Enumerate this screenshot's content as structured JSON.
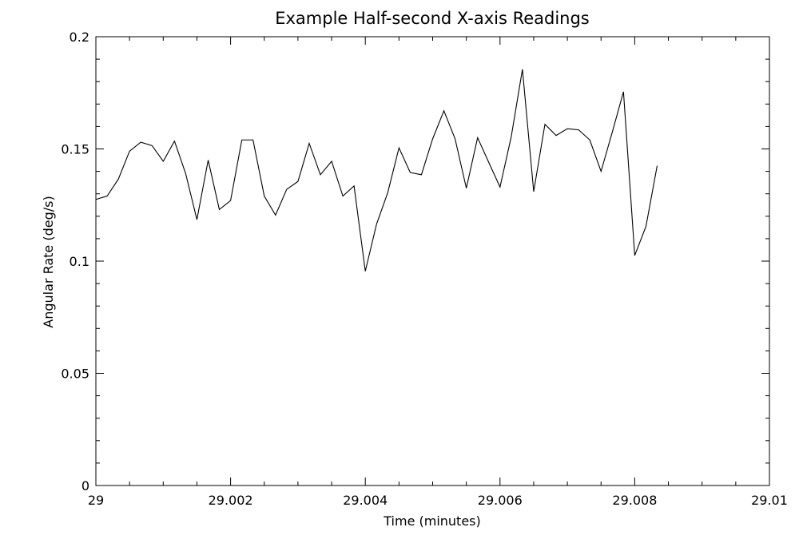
{
  "chart_data": {
    "type": "line",
    "title": "Example Half-second X-axis Readings",
    "xlabel": "Time (minutes)",
    "ylabel": "Angular Rate (deg/s)",
    "xlim": [
      29.0,
      29.01
    ],
    "ylim": [
      0,
      0.2
    ],
    "x_ticks": [
      29.0,
      29.002,
      29.004,
      29.006,
      29.008,
      29.01
    ],
    "x_tick_labels": [
      "29",
      "29.002",
      "29.004",
      "29.006",
      "29.008",
      "29.01"
    ],
    "x_minor_step": 0.0005,
    "y_ticks": [
      0,
      0.05,
      0.1,
      0.15,
      0.2
    ],
    "y_tick_labels": [
      "0",
      "0.05",
      "0.1",
      "0.15",
      "0.2"
    ],
    "y_minor_step": 0.01,
    "grid": false,
    "series": [
      {
        "x": [
          29.0,
          29.000167,
          29.000333,
          29.0005,
          29.000667,
          29.000833,
          29.001,
          29.001167,
          29.001333,
          29.0015,
          29.001667,
          29.001833,
          29.002,
          29.002167,
          29.002333,
          29.0025,
          29.002667,
          29.002833,
          29.003,
          29.003167,
          29.003333,
          29.0035,
          29.003667,
          29.003833,
          29.004,
          29.004167,
          29.004333,
          29.0045,
          29.004667,
          29.004833,
          29.005,
          29.005167,
          29.005333,
          29.0055,
          29.005667,
          29.005833,
          29.006,
          29.006167,
          29.006333,
          29.0065,
          29.006667,
          29.006833,
          29.007,
          29.007167,
          29.007333,
          29.0075,
          29.007667,
          29.007833,
          29.008,
          29.008167,
          29.008333
        ],
        "values": [
          0.1275,
          0.129,
          0.1365,
          0.149,
          0.153,
          0.1515,
          0.1445,
          0.1535,
          0.139,
          0.1185,
          0.145,
          0.123,
          0.127,
          0.154,
          0.154,
          0.129,
          0.1205,
          0.132,
          0.1355,
          0.1525,
          0.1385,
          0.1445,
          0.129,
          0.1335,
          0.0955,
          0.1165,
          0.1305,
          0.1505,
          0.1395,
          0.1385,
          0.1545,
          0.167,
          0.1545,
          0.1325,
          0.155,
          0.144,
          0.133,
          0.1555,
          0.1855,
          0.131,
          0.161,
          0.156,
          0.159,
          0.1585,
          0.154,
          0.14,
          0.1575,
          0.1755,
          0.1025,
          0.1155,
          0.1425
        ]
      }
    ]
  }
}
